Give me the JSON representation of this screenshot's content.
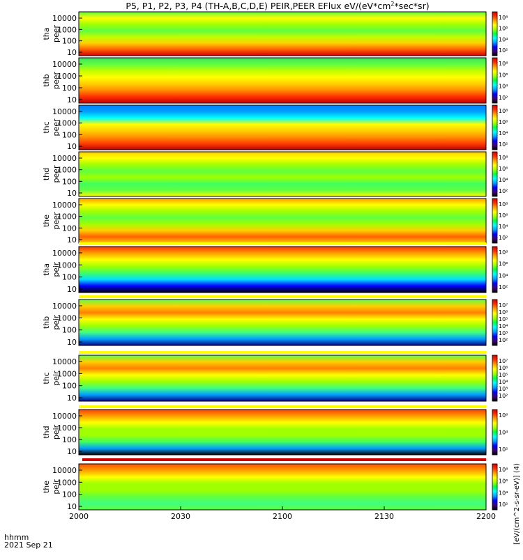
{
  "chart_data": {
    "type": "heatmap",
    "title": "P5, P1, P2, P3, P4 (TH-A,B,C,D,E) PEIR,PEER EFlux eV/(eV*cm^2*sec*sr)",
    "title_parts": {
      "pre": "P5, P1, P2, P3, P4 (TH-A,B,C,D,E) PEIR,PEER EFlux eV/(eV*cm",
      "sup": "2",
      "post": "*sec*sr)"
    },
    "x_ticks": [
      "2000",
      "2030",
      "2100",
      "2130",
      "2200"
    ],
    "x_label_left": "hhmm",
    "date_label": "2021 Sep 21",
    "y_ticks": [
      "10",
      "100",
      "1000",
      "10000"
    ],
    "y_scale": "log",
    "colorbar_label": "[eV/(cm^2-s-sr-eV)] (4)",
    "colorbar_label_alt": "[eV/(cm2-s-sr-eV)] (4)",
    "panels": [
      {
        "name": "tha peer",
        "line1": "tha",
        "line2": "peer",
        "cbar_ticks": [
          "10²",
          "10⁴",
          "10⁶",
          "10⁸"
        ]
      },
      {
        "name": "thb peer",
        "line1": "thb",
        "line2": "peer",
        "cbar_ticks": [
          "10²",
          "10⁴",
          "10⁶",
          "10⁸"
        ]
      },
      {
        "name": "thc peer",
        "line1": "thc",
        "line2": "peer",
        "cbar_ticks": [
          "10²",
          "10⁴",
          "10⁶",
          "10⁸"
        ]
      },
      {
        "name": "thd peer",
        "line1": "thd",
        "line2": "peer",
        "cbar_ticks": [
          "10²",
          "10⁴",
          "10⁶",
          "10⁸"
        ]
      },
      {
        "name": "the peer",
        "line1": "the",
        "line2": "peer",
        "cbar_ticks": [
          "10²",
          "10⁴",
          "10⁶",
          "10⁸"
        ]
      },
      {
        "name": "tha peir",
        "line1": "tha",
        "line2": "peir",
        "cbar_ticks": [
          "10²",
          "10⁴",
          "10⁶",
          "10⁸"
        ]
      },
      {
        "name": "thb peir",
        "line1": "thb",
        "line2": "peir",
        "cbar_ticks": [
          "10²",
          "10³",
          "10⁴",
          "10⁵",
          "10⁶",
          "10⁷"
        ]
      },
      {
        "name": "thc peir",
        "line1": "thc",
        "line2": "peir",
        "cbar_ticks": [
          "10²",
          "10³",
          "10⁴",
          "10⁵",
          "10⁶",
          "10⁷"
        ]
      },
      {
        "name": "thd peir",
        "line1": "thd",
        "line2": "peir",
        "cbar_ticks": [
          "10²",
          "10⁴",
          "10⁶"
        ]
      },
      {
        "name": "the peir",
        "line1": "the",
        "line2": "peir",
        "cbar_ticks": [
          "10²",
          "10⁴",
          "10⁶",
          "10⁸"
        ]
      }
    ],
    "colors": {
      "colormap": [
        "#000000",
        "#400080",
        "#0000ff",
        "#00a0ff",
        "#00ffff",
        "#00ff40",
        "#a0ff00",
        "#ffff00",
        "#ffa000",
        "#ff3000",
        "#d00000"
      ],
      "background": "#ffffff",
      "separator_yellow": "#ffff00",
      "separator_red": "#cc0000"
    }
  }
}
